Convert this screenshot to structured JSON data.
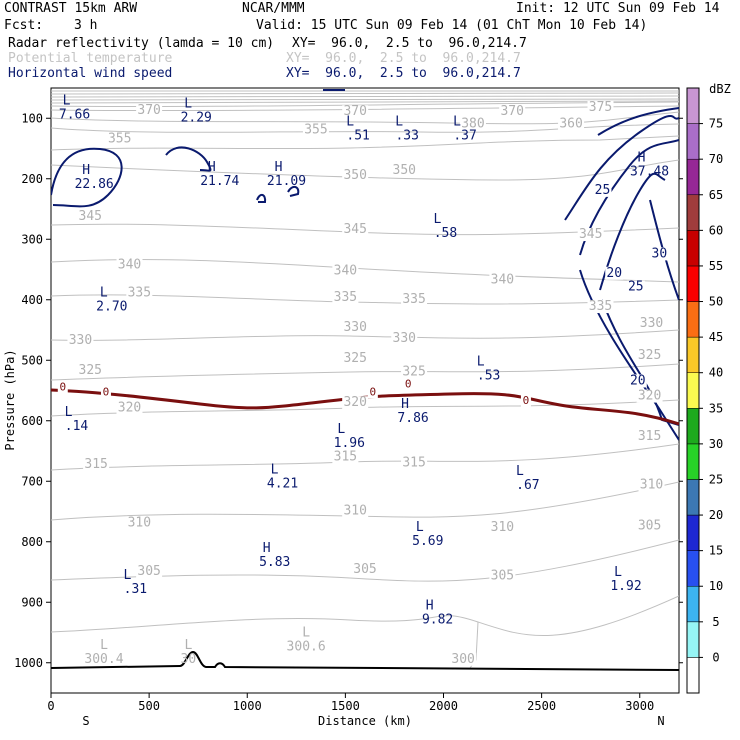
{
  "header": {
    "model": "CONTRAST 15km ARW",
    "center": "NCAR/MMM",
    "init": "Init: 12 UTC Sun 09 Feb 14",
    "fcst_label": "Fcst:",
    "fcst_value": "3 h",
    "valid": "Valid: 15 UTC Sun 09 Feb 14 (01 ChT Mon 10 Feb 14)",
    "fields": [
      {
        "name": "Radar reflectivity (lamda = 10 cm)",
        "xy": "XY=  96.0,  2.5 to  96.0,214.7",
        "color": "#000000"
      },
      {
        "name": "Potential temperature",
        "xy": "XY=  96.0,  2.5 to  96.0,214.7",
        "color": "#c4c4c4"
      },
      {
        "name": "Horizontal wind speed",
        "xy": "XY=  96.0,  2.5 to  96.0,214.7",
        "color": "#0a1a6e"
      }
    ]
  },
  "chart_data": {
    "type": "cross-section contour",
    "xlabel": "Distance (km)",
    "ylabel": "Pressure (hPa)",
    "xlim": [
      0,
      3200
    ],
    "ylim": [
      1050,
      50
    ],
    "x_ticks": [
      0,
      500,
      1000,
      1500,
      2000,
      2500,
      3000
    ],
    "y_ticks": [
      100,
      200,
      300,
      400,
      500,
      600,
      700,
      800,
      900,
      1000
    ],
    "x_end_labels": {
      "left": "S",
      "right": "N"
    },
    "colorbar": {
      "unit": "dBZ",
      "levels": [
        0,
        5,
        10,
        15,
        20,
        25,
        30,
        35,
        40,
        45,
        50,
        55,
        60,
        65,
        70,
        75
      ],
      "colors": [
        "#ffffff",
        "#96f5f5",
        "#3cb4f0",
        "#2850f0",
        "#1e28d2",
        "#3c78b4",
        "#28d228",
        "#1eaa1e",
        "#fafa50",
        "#fac828",
        "#fa6e14",
        "#fa0000",
        "#c80000",
        "#a03c3c",
        "#962896",
        "#aa6ec8",
        "#c896d2"
      ]
    },
    "theta_contours": [
      {
        "label": "300",
        "x": 2100,
        "p": 1000
      },
      {
        "label": "305",
        "x": 500,
        "p": 855
      },
      {
        "label": "305",
        "x": 1600,
        "p": 852
      },
      {
        "label": "305",
        "x": 2300,
        "p": 862
      },
      {
        "label": "305",
        "x": 3050,
        "p": 780
      },
      {
        "label": "310",
        "x": 450,
        "p": 775
      },
      {
        "label": "310",
        "x": 1550,
        "p": 755
      },
      {
        "label": "310",
        "x": 2300,
        "p": 782
      },
      {
        "label": "310",
        "x": 3060,
        "p": 712
      },
      {
        "label": "315",
        "x": 230,
        "p": 678
      },
      {
        "label": "315",
        "x": 1500,
        "p": 666
      },
      {
        "label": "315",
        "x": 1850,
        "p": 676
      },
      {
        "label": "315",
        "x": 3050,
        "p": 632
      },
      {
        "label": "320",
        "x": 400,
        "p": 585
      },
      {
        "label": "320",
        "x": 1550,
        "p": 576
      },
      {
        "label": "320",
        "x": 3050,
        "p": 565
      },
      {
        "label": "325",
        "x": 200,
        "p": 523
      },
      {
        "label": "325",
        "x": 1550,
        "p": 503
      },
      {
        "label": "325",
        "x": 1850,
        "p": 525
      },
      {
        "label": "325",
        "x": 3050,
        "p": 498
      },
      {
        "label": "330",
        "x": 150,
        "p": 473
      },
      {
        "label": "330",
        "x": 1550,
        "p": 452
      },
      {
        "label": "330",
        "x": 1800,
        "p": 470
      },
      {
        "label": "330",
        "x": 3060,
        "p": 445
      },
      {
        "label": "335",
        "x": 450,
        "p": 395
      },
      {
        "label": "335",
        "x": 1500,
        "p": 402
      },
      {
        "label": "335",
        "x": 1850,
        "p": 405
      },
      {
        "label": "335",
        "x": 2800,
        "p": 417
      },
      {
        "label": "340",
        "x": 400,
        "p": 348
      },
      {
        "label": "340",
        "x": 1500,
        "p": 358
      },
      {
        "label": "340",
        "x": 2300,
        "p": 373
      },
      {
        "label": "345",
        "x": 200,
        "p": 268
      },
      {
        "label": "345",
        "x": 1550,
        "p": 290
      },
      {
        "label": "345",
        "x": 2750,
        "p": 298
      },
      {
        "label": "350",
        "x": 1550,
        "p": 200
      },
      {
        "label": "350",
        "x": 1800,
        "p": 192
      },
      {
        "label": "355",
        "x": 350,
        "p": 140
      },
      {
        "label": "355",
        "x": 1350,
        "p": 125
      },
      {
        "label": "360",
        "x": 2650,
        "p": 115
      },
      {
        "label": "370",
        "x": 500,
        "p": 93
      },
      {
        "label": "370",
        "x": 1550,
        "p": 95
      },
      {
        "label": "370",
        "x": 2350,
        "p": 95
      },
      {
        "label": "375",
        "x": 2800,
        "p": 88
      },
      {
        "label": "380",
        "x": 2150,
        "p": 115
      }
    ],
    "theta_extrema": [
      {
        "type": "L",
        "value": "300.4",
        "x": 270,
        "p": 1000
      },
      {
        "type": "L",
        "value": "300.6",
        "x": 1300,
        "p": 980
      },
      {
        "type": "L",
        "value": "30",
        "x": 700,
        "p": 1000
      }
    ],
    "wind_contours": [
      {
        "label": "20",
        "x": 2870,
        "p": 362
      },
      {
        "label": "20",
        "x": 2990,
        "p": 540
      },
      {
        "label": "25",
        "x": 2810,
        "p": 225
      },
      {
        "label": "25",
        "x": 2980,
        "p": 385
      },
      {
        "label": "30",
        "x": 3100,
        "p": 330
      }
    ],
    "wind_extrema": [
      {
        "type": "L",
        "value": "7.66",
        "x": 120,
        "p": 100
      },
      {
        "type": "L",
        "value": "2.29",
        "x": 740,
        "p": 105
      },
      {
        "type": "L",
        "value": ".51",
        "x": 1565,
        "p": 135
      },
      {
        "type": "L",
        "value": ".33",
        "x": 1815,
        "p": 135
      },
      {
        "type": "L",
        "value": ".37",
        "x": 2110,
        "p": 135
      },
      {
        "type": "H",
        "value": "22.86",
        "x": 220,
        "p": 215
      },
      {
        "type": "H",
        "value": "21.74",
        "x": 860,
        "p": 210
      },
      {
        "type": "H",
        "value": "21.09",
        "x": 1200,
        "p": 210
      },
      {
        "type": "H",
        "value": "37.48",
        "x": 3050,
        "p": 195
      },
      {
        "type": "L",
        "value": ".58",
        "x": 2010,
        "p": 296
      },
      {
        "type": "L",
        "value": "2.70",
        "x": 310,
        "p": 418
      },
      {
        "type": "L",
        "value": ".53",
        "x": 2230,
        "p": 532
      },
      {
        "type": "L",
        "value": ".14",
        "x": 130,
        "p": 615
      },
      {
        "type": "H",
        "value": "7.86",
        "x": 1845,
        "p": 602
      },
      {
        "type": "L",
        "value": "1.96",
        "x": 1520,
        "p": 643
      },
      {
        "type": "L",
        "value": "4.21",
        "x": 1180,
        "p": 710
      },
      {
        "type": "L",
        "value": ".67",
        "x": 2430,
        "p": 713
      },
      {
        "type": "L",
        "value": "5.69",
        "x": 1920,
        "p": 805
      },
      {
        "type": "H",
        "value": "5.83",
        "x": 1140,
        "p": 840
      },
      {
        "type": "L",
        "value": ".31",
        "x": 430,
        "p": 885
      },
      {
        "type": "L",
        "value": "1.92",
        "x": 2930,
        "p": 880
      },
      {
        "type": "H",
        "value": "9.82",
        "x": 1970,
        "p": 935
      }
    ],
    "freezing_level_labels": [
      {
        "label": "0",
        "x": 60,
        "p": 550
      },
      {
        "label": "0",
        "x": 280,
        "p": 558
      },
      {
        "label": "0",
        "x": 1640,
        "p": 558
      },
      {
        "label": "0",
        "x": 1820,
        "p": 545
      },
      {
        "label": "0",
        "x": 2420,
        "p": 572
      }
    ]
  }
}
